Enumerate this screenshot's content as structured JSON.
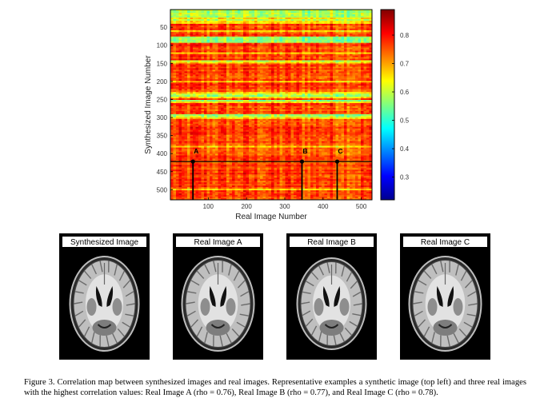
{
  "chart_data": {
    "type": "heatmap",
    "title": "",
    "xlabel": "Real Image Number",
    "ylabel": "Synthesized Image Number",
    "x_ticks": [
      100,
      200,
      300,
      400,
      500
    ],
    "y_ticks": [
      50,
      100,
      150,
      200,
      250,
      300,
      350,
      400,
      450,
      500
    ],
    "x_range": [
      1,
      528
    ],
    "y_range": [
      1,
      528
    ],
    "colorbar": {
      "min": 0.22,
      "max": 0.89,
      "ticks": [
        0.3,
        0.4,
        0.5,
        0.6,
        0.7,
        0.8
      ],
      "colormap": "jet"
    },
    "low_rows": [
      3,
      8,
      14,
      20,
      28,
      80,
      82,
      84,
      86,
      88,
      90,
      145,
      238,
      240,
      252,
      254,
      294,
      298
    ],
    "mid_rows": [
      1,
      2,
      5,
      11,
      24,
      35,
      37,
      60,
      62,
      120,
      150,
      200,
      230,
      234,
      246,
      258,
      300,
      302,
      380,
      500
    ],
    "selected_row": 422,
    "markers": [
      {
        "label": "A",
        "x": 60,
        "y": 422
      },
      {
        "label": "B",
        "x": 345,
        "y": 422
      },
      {
        "label": "C",
        "x": 437,
        "y": 422
      }
    ]
  },
  "thumbnails": [
    {
      "label": "Synthesized Image"
    },
    {
      "label": "Real Image A"
    },
    {
      "label": "Real Image B"
    },
    {
      "label": "Real Image C"
    }
  ],
  "caption": "Figure 3. Correlation map between synthesized images and real images. Representative examples a synthetic image (top left) and three real images with the highest correlation values: Real Image A (rho = 0.76), Real Image B (rho = 0.77), and Real Image C (rho = 0.78)."
}
